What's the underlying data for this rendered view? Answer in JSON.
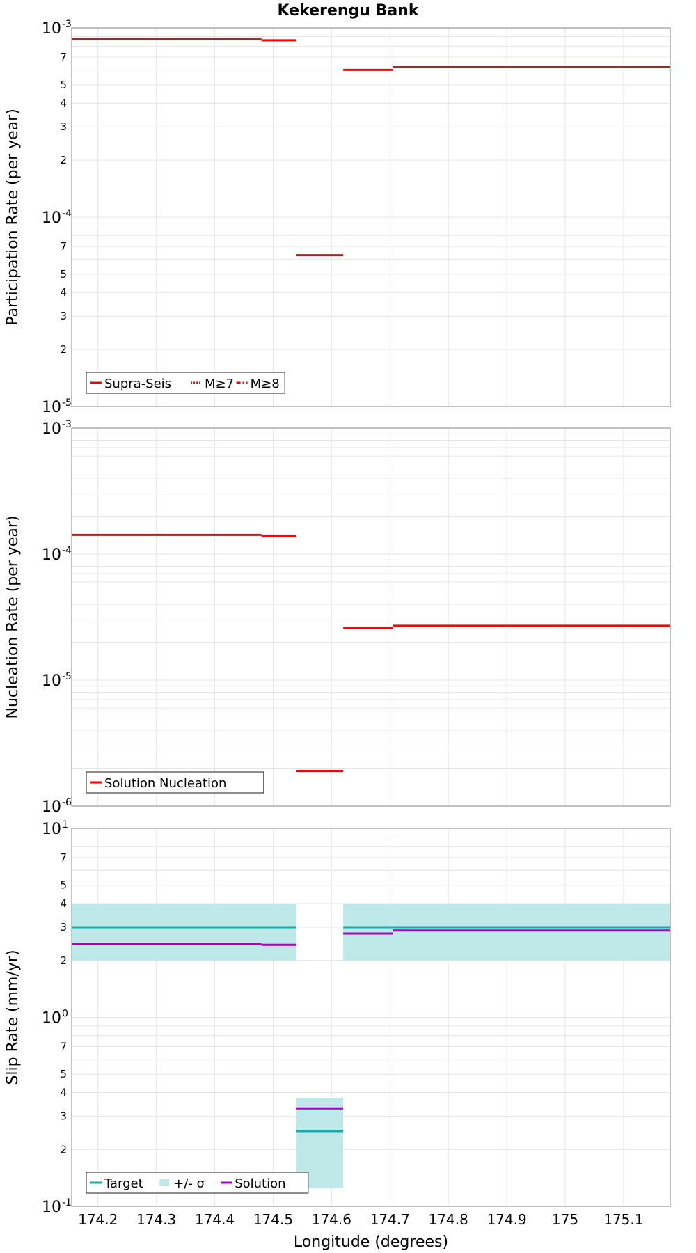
{
  "figure_title": "Kekerengu Bank",
  "x_axis": {
    "label": "Longitude (degrees)",
    "range": [
      174.155,
      175.18
    ],
    "ticks": [
      174.2,
      174.3,
      174.4,
      174.5,
      174.6,
      174.7,
      174.8,
      174.9,
      175.0,
      175.1
    ],
    "tick_labels": [
      "174.2",
      "174.3",
      "174.4",
      "174.5",
      "174.6",
      "174.7",
      "174.8",
      "174.9",
      "175",
      "175.1"
    ]
  },
  "colors": {
    "red": "#ff0000",
    "teal": "#1aaaaa",
    "band": "#bfe9e9",
    "purple": "#aa00bb",
    "grid": "#e6e6e6",
    "frame": "#999999",
    "text": "#000000"
  },
  "chart_data": [
    {
      "type": "line",
      "scale": "log",
      "ylabel": "Participation Rate (per year)",
      "ylim": [
        1e-05,
        0.001
      ],
      "major_ticks": [
        {
          "base": "10",
          "exp": "-3",
          "value": 0.001
        },
        {
          "base": "10",
          "exp": "-4",
          "value": 0.0001
        },
        {
          "base": "10",
          "exp": "-5",
          "value": 1e-05
        }
      ],
      "minor_tick_digits": [
        "2",
        "3",
        "4",
        "5",
        "7"
      ],
      "legend": [
        "Supra-Seis",
        "M≥7",
        "M≥8"
      ],
      "series": [
        {
          "name": "Supra-Seis",
          "style": "solid",
          "segments": [
            {
              "x0": 174.155,
              "x1": 174.48,
              "y": 0.00087
            },
            {
              "x0": 174.48,
              "x1": 174.54,
              "y": 0.00086
            },
            {
              "x0": 174.54,
              "x1": 174.62,
              "y": 6.3e-05
            },
            {
              "x0": 174.62,
              "x1": 174.705,
              "y": 0.0006
            },
            {
              "x0": 174.705,
              "x1": 175.18,
              "y": 0.00062
            }
          ]
        }
      ]
    },
    {
      "type": "line",
      "scale": "log",
      "ylabel": "Nucleation Rate (per year)",
      "ylim": [
        1e-06,
        0.001
      ],
      "major_ticks": [
        {
          "base": "10",
          "exp": "-3",
          "value": 0.001
        },
        {
          "base": "10",
          "exp": "-4",
          "value": 0.0001
        },
        {
          "base": "10",
          "exp": "-5",
          "value": 1e-05
        },
        {
          "base": "10",
          "exp": "-6",
          "value": 1e-06
        }
      ],
      "minor_tick_digits": [],
      "legend": [
        "Solution Nucleation"
      ],
      "series": [
        {
          "name": "Solution Nucleation",
          "style": "solid",
          "segments": [
            {
              "x0": 174.155,
              "x1": 174.48,
              "y": 0.000142
            },
            {
              "x0": 174.48,
              "x1": 174.54,
              "y": 0.00014
            },
            {
              "x0": 174.54,
              "x1": 174.62,
              "y": 1.9e-06
            },
            {
              "x0": 174.62,
              "x1": 174.705,
              "y": 2.6e-05
            },
            {
              "x0": 174.705,
              "x1": 175.18,
              "y": 2.7e-05
            }
          ]
        }
      ]
    },
    {
      "type": "line",
      "scale": "log",
      "ylabel": "Slip Rate (mm/yr)",
      "ylim": [
        0.1,
        10
      ],
      "major_ticks": [
        {
          "base": "10",
          "exp": "1",
          "value": 10
        },
        {
          "base": "10",
          "exp": "0",
          "value": 1
        },
        {
          "base": "10",
          "exp": "-1",
          "value": 0.1
        }
      ],
      "minor_tick_digits": [
        "2",
        "3",
        "4",
        "5",
        "7"
      ],
      "legend": [
        "Target",
        "+/- σ",
        "Solution"
      ],
      "bands": [
        {
          "x0": 174.155,
          "x1": 174.54,
          "low": 2.0,
          "high": 4.0
        },
        {
          "x0": 174.54,
          "x1": 174.62,
          "low": 0.125,
          "high": 0.375
        },
        {
          "x0": 174.62,
          "x1": 175.18,
          "low": 2.0,
          "high": 4.0
        }
      ],
      "series": [
        {
          "name": "Target",
          "segments": [
            {
              "x0": 174.155,
              "x1": 174.54,
              "y": 3.0
            },
            {
              "x0": 174.54,
              "x1": 174.62,
              "y": 0.25
            },
            {
              "x0": 174.62,
              "x1": 175.18,
              "y": 3.0
            }
          ]
        },
        {
          "name": "Solution",
          "segments": [
            {
              "x0": 174.155,
              "x1": 174.48,
              "y": 2.45
            },
            {
              "x0": 174.48,
              "x1": 174.54,
              "y": 2.42
            },
            {
              "x0": 174.54,
              "x1": 174.62,
              "y": 0.33
            },
            {
              "x0": 174.62,
              "x1": 174.705,
              "y": 2.78
            },
            {
              "x0": 174.705,
              "x1": 175.18,
              "y": 2.88
            }
          ]
        }
      ]
    }
  ]
}
